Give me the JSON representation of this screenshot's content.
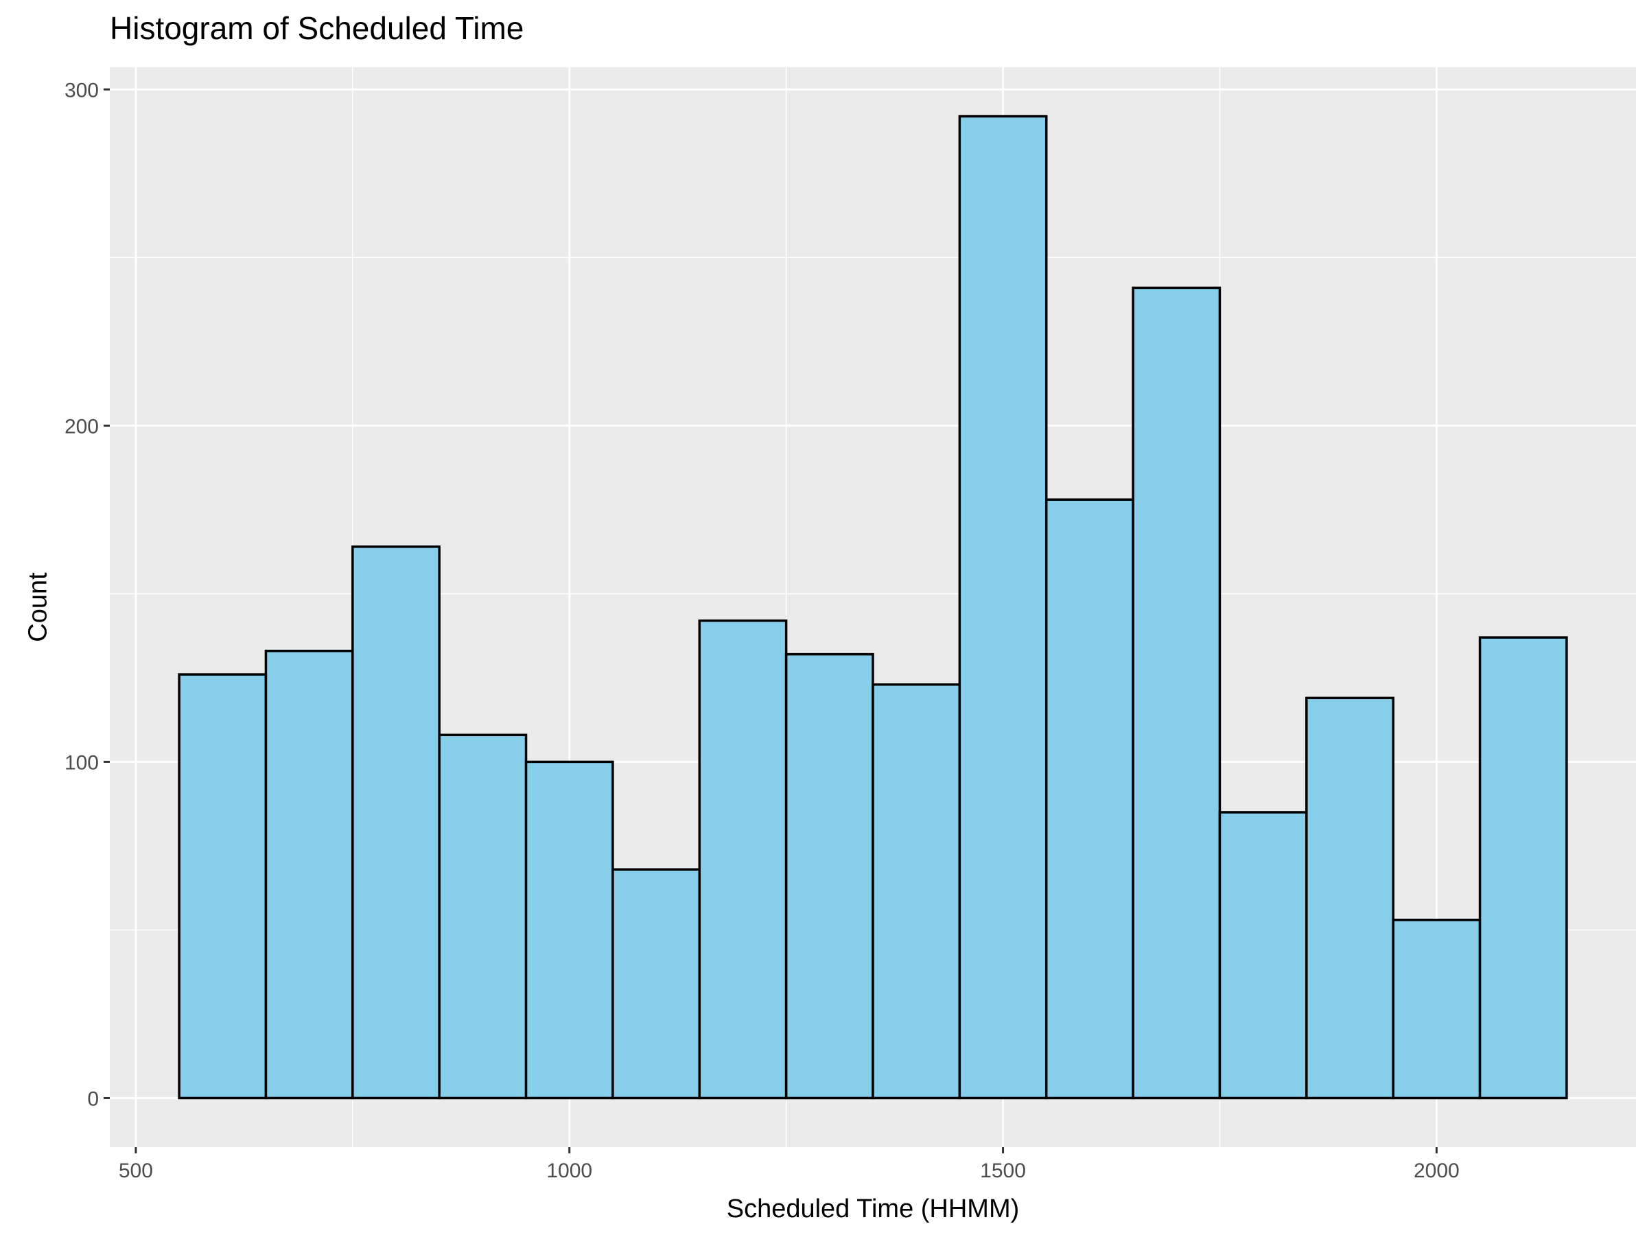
{
  "chart_data": {
    "type": "bar",
    "title": "Histogram of Scheduled Time",
    "xlabel": "Scheduled Time (HHMM)",
    "ylabel": "Count",
    "bin_width": 100,
    "bins": [
      {
        "x_start": 550,
        "x_end": 650,
        "count": 126
      },
      {
        "x_start": 650,
        "x_end": 750,
        "count": 133
      },
      {
        "x_start": 750,
        "x_end": 850,
        "count": 164
      },
      {
        "x_start": 850,
        "x_end": 950,
        "count": 108
      },
      {
        "x_start": 950,
        "x_end": 1050,
        "count": 100
      },
      {
        "x_start": 1050,
        "x_end": 1150,
        "count": 68
      },
      {
        "x_start": 1150,
        "x_end": 1250,
        "count": 142
      },
      {
        "x_start": 1250,
        "x_end": 1350,
        "count": 132
      },
      {
        "x_start": 1350,
        "x_end": 1450,
        "count": 123
      },
      {
        "x_start": 1450,
        "x_end": 1550,
        "count": 292
      },
      {
        "x_start": 1550,
        "x_end": 1650,
        "count": 178
      },
      {
        "x_start": 1650,
        "x_end": 1750,
        "count": 241
      },
      {
        "x_start": 1750,
        "x_end": 1850,
        "count": 85
      },
      {
        "x_start": 1850,
        "x_end": 1950,
        "count": 119
      },
      {
        "x_start": 1950,
        "x_end": 2050,
        "count": 53
      },
      {
        "x_start": 2050,
        "x_end": 2150,
        "count": 137
      }
    ],
    "xlim": [
      470,
      2230
    ],
    "ylim": [
      -14.6,
      306.6
    ],
    "x_ticks": [
      500,
      1000,
      1500,
      2000
    ],
    "x_tick_labels": [
      "500",
      "1000",
      "1500",
      "2000"
    ],
    "y_ticks": [
      0,
      100,
      200,
      300
    ],
    "y_tick_labels": [
      "0",
      "100",
      "200",
      "300"
    ],
    "grid": true,
    "bar_fill": "#87CEEB",
    "bar_stroke": "#000000",
    "panel_background": "#EBEBEB",
    "grid_color": "#FFFFFF"
  }
}
